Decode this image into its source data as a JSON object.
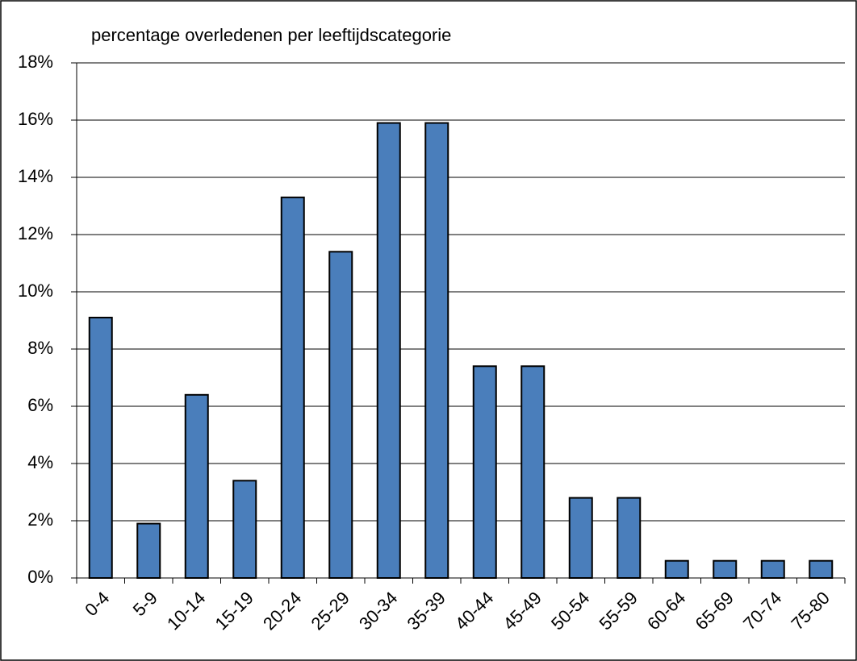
{
  "chart_data": {
    "type": "bar",
    "title": "percentage overledenen per leeftijdscategorie",
    "categories": [
      "0-4",
      "5-9",
      "10-14",
      "15-19",
      "20-24",
      "25-29",
      "30-34",
      "35-39",
      "40-44",
      "45-49",
      "50-54",
      "55-59",
      "60-64",
      "65-69",
      "70-74",
      "75-80"
    ],
    "values": [
      9.1,
      1.9,
      6.4,
      3.4,
      13.3,
      11.4,
      15.9,
      15.9,
      7.4,
      7.4,
      2.8,
      2.8,
      0.6,
      0.6,
      0.6,
      0.6
    ],
    "color": "#4a7ebb",
    "ylim": [
      0,
      18
    ],
    "yticks": [
      {
        "value": 0,
        "label": "0%"
      },
      {
        "value": 2,
        "label": "2%"
      },
      {
        "value": 4,
        "label": "4%"
      },
      {
        "value": 6,
        "label": "6%"
      },
      {
        "value": 8,
        "label": "8%"
      },
      {
        "value": 10,
        "label": "10%"
      },
      {
        "value": 12,
        "label": "12%"
      },
      {
        "value": 14,
        "label": "14%"
      },
      {
        "value": 16,
        "label": "16%"
      },
      {
        "value": 18,
        "label": "18%"
      }
    ],
    "grid": true
  }
}
